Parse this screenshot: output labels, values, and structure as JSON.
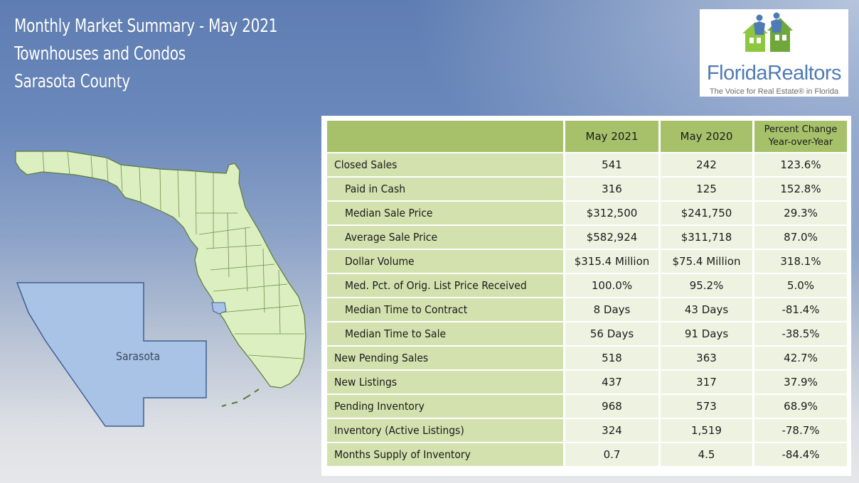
{
  "title": {
    "line1": "Monthly Market Summary - May 2021",
    "line2": "Townhouses and Condos",
    "line3": "Sarasota County"
  },
  "logo": {
    "name": "FloridaRealtors",
    "tagline": "The Voice for Real Estate® in Florida",
    "icon": "houses-people-icon",
    "colors": {
      "green": "#8dc63f",
      "blue": "#4f7ab5"
    }
  },
  "map": {
    "label": "Sarasota",
    "colors": {
      "state_fill": "#dcefc0",
      "county_fill": "#a9c3e6",
      "border": "#5a7a3a"
    }
  },
  "table": {
    "headers": [
      "May 2021",
      "May 2020",
      "Percent Change",
      "Year-over-Year"
    ],
    "rows": [
      {
        "label": "Closed Sales",
        "indent": false,
        "values": [
          "541",
          "242",
          "123.6%"
        ]
      },
      {
        "label": "Paid in Cash",
        "indent": true,
        "values": [
          "316",
          "125",
          "152.8%"
        ]
      },
      {
        "label": "Median Sale Price",
        "indent": true,
        "values": [
          "$312,500",
          "$241,750",
          "29.3%"
        ]
      },
      {
        "label": "Average Sale Price",
        "indent": true,
        "values": [
          "$582,924",
          "$311,718",
          "87.0%"
        ]
      },
      {
        "label": "Dollar Volume",
        "indent": true,
        "values": [
          "$315.4 Million",
          "$75.4 Million",
          "318.1%"
        ]
      },
      {
        "label": "Med. Pct. of Orig. List Price Received",
        "indent": true,
        "values": [
          "100.0%",
          "95.2%",
          "5.0%"
        ]
      },
      {
        "label": "Median Time to Contract",
        "indent": true,
        "values": [
          "8 Days",
          "43 Days",
          "-81.4%"
        ]
      },
      {
        "label": "Median Time to Sale",
        "indent": true,
        "values": [
          "56 Days",
          "91 Days",
          "-38.5%"
        ]
      },
      {
        "label": "New Pending Sales",
        "indent": false,
        "values": [
          "518",
          "363",
          "42.7%"
        ]
      },
      {
        "label": "New Listings",
        "indent": false,
        "values": [
          "437",
          "317",
          "37.9%"
        ]
      },
      {
        "label": "Pending Inventory",
        "indent": false,
        "values": [
          "968",
          "573",
          "68.9%"
        ]
      },
      {
        "label": "Inventory (Active Listings)",
        "indent": false,
        "values": [
          "324",
          "1,519",
          "-78.7%"
        ]
      },
      {
        "label": "Months Supply of Inventory",
        "indent": false,
        "values": [
          "0.7",
          "4.5",
          "-84.4%"
        ]
      }
    ],
    "colors": {
      "header": "#a7c16b",
      "label_cell": "#d3e1ae",
      "value_cell": "#eef3e1"
    }
  }
}
